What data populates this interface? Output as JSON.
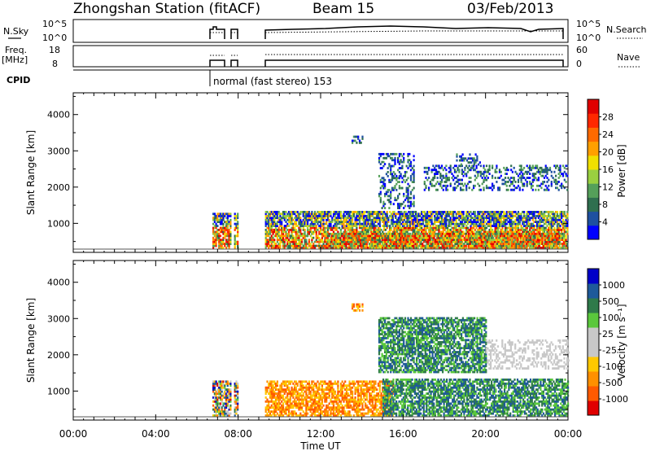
{
  "header": {
    "station": "Zhongshan Station (fitACF)",
    "beam": "Beam 15",
    "date": "03/Feb/2013"
  },
  "params": {
    "nsky_label": "N.Sky",
    "nsky_ticks": [
      "10^5",
      "10^0"
    ],
    "nsearch_label": "N.Search",
    "nsearch_ticks": [
      "10^5",
      "10^0"
    ],
    "freq_label": "Freq.",
    "freq_unit": "[MHz]",
    "freq_ticks": [
      "18",
      "8"
    ],
    "nave_label": "Nave",
    "nave_ticks": [
      "60",
      "0"
    ],
    "cpid_label": "CPID",
    "cpid_text": "normal (fast stereo) 153"
  },
  "colors": {
    "power": [
      "#0000ff",
      "#1e50a0",
      "#2f6f4f",
      "#55a05a",
      "#9ad040",
      "#f0e000",
      "#ffa000",
      "#ff6a00",
      "#ff2800",
      "#e00000"
    ],
    "velocity": [
      "#e00000",
      "#ff5a00",
      "#ff9000",
      "#ffc800",
      "#c8c8c8",
      "#c8c8c8",
      "#5ac83c",
      "#2f7a4a",
      "#1e5a9a",
      "#0000c8"
    ]
  },
  "chart_data": [
    {
      "type": "heatmap",
      "name": "power",
      "ylabel": "Slant Range [km]",
      "yticks": [
        "1000",
        "2000",
        "3000",
        "4000"
      ],
      "ylim": [
        200,
        4600
      ],
      "xlim_hours": [
        0,
        24
      ],
      "colorbar_label": "Power [dB]",
      "colorbar_ticks": [
        "4",
        "8",
        "12",
        "16",
        "20",
        "24",
        "28"
      ],
      "colorbar_range": [
        0,
        32
      ],
      "regions": [
        {
          "t0": 6.75,
          "t1": 7.6,
          "r0": 300,
          "r1": 1250,
          "level": "strong"
        },
        {
          "t0": 7.8,
          "t1": 8.0,
          "r0": 300,
          "r1": 1250,
          "level": "strong"
        },
        {
          "t0": 9.3,
          "t1": 24.0,
          "r0": 300,
          "r1": 1300,
          "level": "strong"
        },
        {
          "t0": 12.5,
          "t1": 15.5,
          "r0": 300,
          "r1": 700,
          "level": "strong"
        },
        {
          "t0": 15.5,
          "t1": 23.8,
          "r0": 300,
          "r1": 700,
          "level": "strong"
        },
        {
          "t0": 14.8,
          "t1": 16.5,
          "r0": 1400,
          "r1": 2900,
          "level": "weak"
        },
        {
          "t0": 17.0,
          "t1": 24.0,
          "r0": 1900,
          "r1": 2600,
          "level": "weak"
        },
        {
          "t0": 18.5,
          "t1": 19.8,
          "r0": 2600,
          "r1": 2900,
          "level": "weak"
        },
        {
          "t0": 13.5,
          "t1": 14.0,
          "r0": 3200,
          "r1": 3400,
          "level": "weak"
        }
      ]
    },
    {
      "type": "heatmap",
      "name": "velocity",
      "ylabel": "Slant Range [km]",
      "yticks": [
        "1000",
        "2000",
        "3000",
        "4000"
      ],
      "ylim": [
        200,
        4600
      ],
      "xlim_hours": [
        0,
        24
      ],
      "xticks": [
        "00:00",
        "04:00",
        "08:00",
        "12:00",
        "16:00",
        "20:00",
        "00:00"
      ],
      "xlabel": "Time UT",
      "colorbar_label": "Velocity [m s⁻¹]",
      "colorbar_ticks": [
        "1000",
        "500",
        "100",
        "25",
        "-25",
        "-100",
        "-500",
        "-1000"
      ],
      "regions": [
        {
          "t0": 6.75,
          "t1": 7.6,
          "r0": 300,
          "r1": 1250,
          "level": "mixed"
        },
        {
          "t0": 7.8,
          "t1": 8.0,
          "r0": 300,
          "r1": 1250,
          "level": "mixed"
        },
        {
          "t0": 9.3,
          "t1": 15.5,
          "r0": 300,
          "r1": 1250,
          "level": "negative"
        },
        {
          "t0": 15.0,
          "t1": 24.0,
          "r0": 300,
          "r1": 1300,
          "level": "positive"
        },
        {
          "t0": 14.8,
          "t1": 20.0,
          "r0": 1500,
          "r1": 3000,
          "level": "positive"
        },
        {
          "t0": 20.0,
          "t1": 24.0,
          "r0": 1600,
          "r1": 2400,
          "level": "near-zero"
        },
        {
          "t0": 13.5,
          "t1": 14.0,
          "r0": 3200,
          "r1": 3400,
          "level": "negative"
        }
      ]
    }
  ]
}
